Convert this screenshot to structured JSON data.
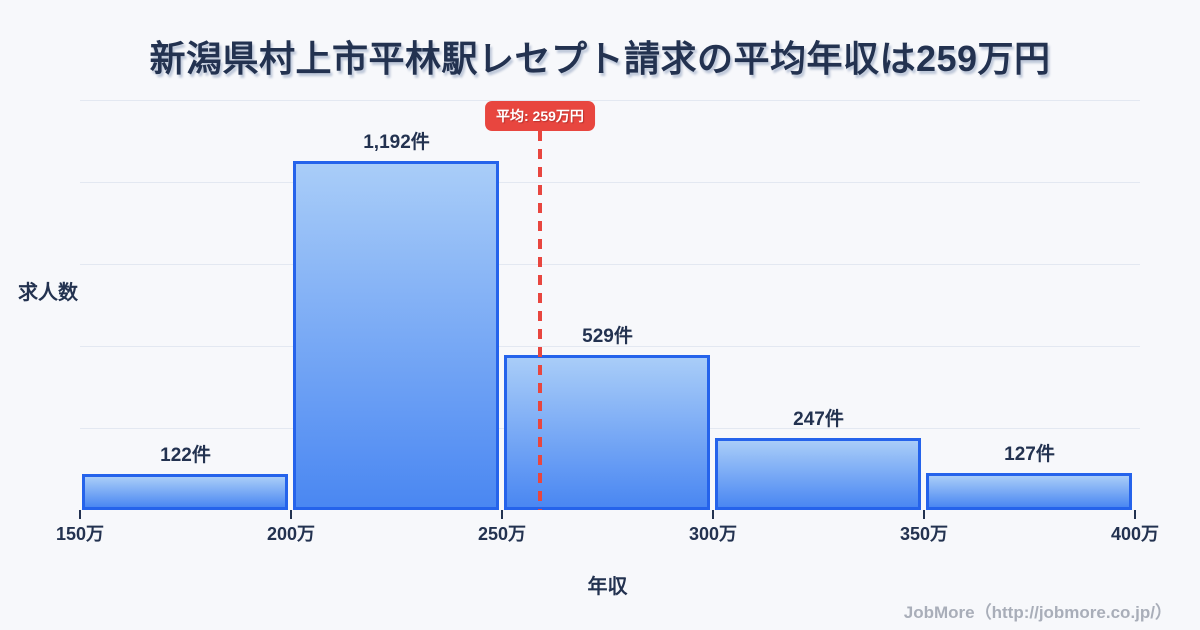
{
  "title": "新潟県村上市平林駅レセプト請求の平均年収は259万円",
  "chart_data": {
    "type": "bar",
    "subtype": "histogram",
    "bin_edges": [
      150,
      200,
      250,
      300,
      350,
      400
    ],
    "bin_edge_labels": [
      "150万",
      "200万",
      "250万",
      "300万",
      "350万",
      "400万"
    ],
    "values": [
      122,
      1192,
      529,
      247,
      127
    ],
    "bar_labels": [
      "122件",
      "1,192件",
      "529件",
      "247件",
      "127件"
    ],
    "xlabel": "年収",
    "ylabel": "求人数",
    "xlim": [
      150,
      400
    ],
    "ylim": [
      0,
      1400
    ],
    "grid": true,
    "grid_step": 280,
    "legend": false,
    "average": {
      "value": 259,
      "label": "平均: 259万円"
    }
  },
  "colors": {
    "background": "#f7f8fb",
    "text": "#233250",
    "bar_border": "#2563eb",
    "bar_fill_top": "#a9cdf8",
    "bar_fill_bottom": "#4a87f2",
    "average_red": "#e8463f",
    "gridline": "#e3e8f1",
    "footer_text": "#a9aeb9"
  },
  "footer": {
    "credit": "JobMore（http://jobmore.co.jp/）"
  }
}
